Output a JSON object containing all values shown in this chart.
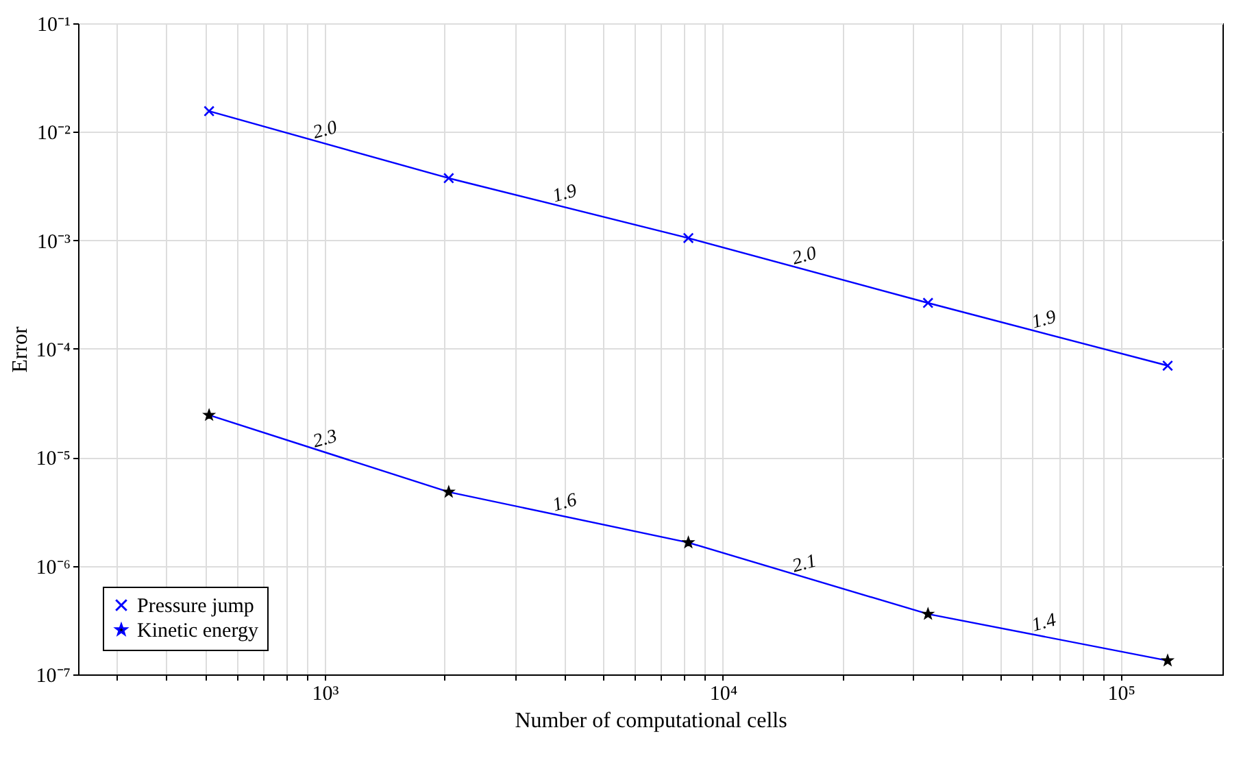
{
  "chart_data": {
    "type": "line",
    "xlabel": "Number of computational cells",
    "ylabel": "Error",
    "log": "xy",
    "grid": true,
    "legend": "bottom left",
    "xlim": [
      240,
      180000
    ],
    "xticks": [
      {
        "value": 300,
        "label": null
      },
      {
        "value": 400,
        "label": null
      },
      {
        "value": 500,
        "label": null
      },
      {
        "value": 600,
        "label": null
      },
      {
        "value": 700,
        "label": null
      },
      {
        "value": 800,
        "label": null
      },
      {
        "value": 900,
        "label": null
      },
      {
        "value": 1000,
        "label": "10³"
      },
      {
        "value": 2000,
        "label": null
      },
      {
        "value": 3000,
        "label": null
      },
      {
        "value": 4000,
        "label": null
      },
      {
        "value": 5000,
        "label": null
      },
      {
        "value": 6000,
        "label": null
      },
      {
        "value": 7000,
        "label": null
      },
      {
        "value": 8000,
        "label": null
      },
      {
        "value": 9000,
        "label": null
      },
      {
        "value": 10000,
        "label": "10⁴"
      },
      {
        "value": 20000,
        "label": null
      },
      {
        "value": 30000,
        "label": null
      },
      {
        "value": 40000,
        "label": null
      },
      {
        "value": 50000,
        "label": null
      },
      {
        "value": 60000,
        "label": null
      },
      {
        "value": 70000,
        "label": null
      },
      {
        "value": 80000,
        "label": null
      },
      {
        "value": 90000,
        "label": null
      },
      {
        "value": 100000,
        "label": "10⁵"
      }
    ],
    "ylim": [
      1e-07,
      0.1
    ],
    "yticks": [
      {
        "value": 1e-07,
        "label": "10⁻⁷"
      },
      {
        "value": 1e-06,
        "label": "10⁻⁶"
      },
      {
        "value": 1e-05,
        "label": "10⁻⁵"
      },
      {
        "value": 0.0001,
        "label": "10⁻⁴"
      },
      {
        "value": 0.001,
        "label": "10⁻³"
      },
      {
        "value": 0.01,
        "label": "10⁻²"
      },
      {
        "value": 0.1,
        "label": "10⁻¹"
      }
    ],
    "x": [
      512,
      2048,
      8192,
      32768,
      131072
    ],
    "series": [
      {
        "name": "Pressure jump",
        "color": "#0000ff",
        "marker": "cross",
        "values": [
          0.0155,
          0.00374,
          0.00105,
          0.000265,
          7e-05
        ]
      },
      {
        "name": "Kinetic energy",
        "color": "#0000ff",
        "marker": "star",
        "values": [
          2.45e-05,
          4.8e-06,
          1.64e-06,
          3.6e-07,
          1.34e-07
        ]
      }
    ],
    "annotations": [
      "2.0",
      "1.9",
      "2.0",
      "1.9",
      "2.3",
      "1.6",
      "2.1",
      "1.4"
    ]
  }
}
